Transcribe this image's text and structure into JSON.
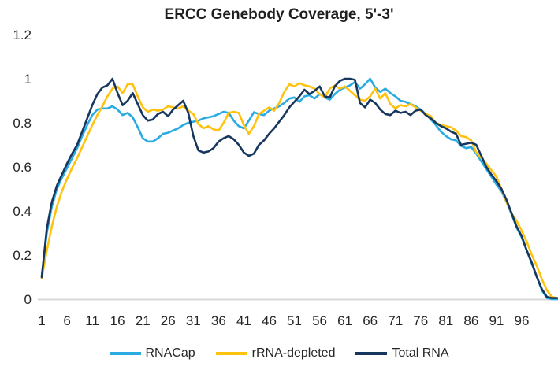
{
  "title": "ERCC Genebody Coverage, 5'-3'",
  "colors": {
    "background": "#ffffff",
    "text": "#262626",
    "axis_line": "#d9d9d9",
    "rnacap": "#29abe2",
    "rrna_depleted": "#ffc20e",
    "total_rna": "#17375e"
  },
  "legend": {
    "items": [
      "RNACap",
      "rRNA-depleted",
      "Total RNA"
    ]
  },
  "chart_data": {
    "type": "line",
    "title": "ERCC Genebody Coverage, 5'-3'",
    "xlabel": "",
    "ylabel": "",
    "grid": false,
    "legend_position": "bottom",
    "ylim": [
      0,
      1.2
    ],
    "yticks": [
      0,
      0.2,
      0.4,
      0.6,
      0.8,
      1,
      1.2
    ],
    "ytick_labels": [
      "0",
      "0.2",
      "0.4",
      "0.6",
      "0.8",
      "1",
      "1.2"
    ],
    "xticks": [
      1,
      6,
      11,
      16,
      21,
      26,
      31,
      36,
      41,
      46,
      51,
      56,
      61,
      66,
      71,
      76,
      81,
      86,
      91,
      96
    ],
    "x": [
      1,
      2,
      3,
      4,
      5,
      6,
      7,
      8,
      9,
      10,
      11,
      12,
      13,
      14,
      15,
      16,
      17,
      18,
      19,
      20,
      21,
      22,
      23,
      24,
      25,
      26,
      27,
      28,
      29,
      30,
      31,
      32,
      33,
      34,
      35,
      36,
      37,
      38,
      39,
      40,
      41,
      42,
      43,
      44,
      45,
      46,
      47,
      48,
      49,
      50,
      51,
      52,
      53,
      54,
      55,
      56,
      57,
      58,
      59,
      60,
      61,
      62,
      63,
      64,
      65,
      66,
      67,
      68,
      69,
      70,
      71,
      72,
      73,
      74,
      75,
      76,
      77,
      78,
      79,
      80,
      81,
      82,
      83,
      84,
      85,
      86,
      87,
      88,
      89,
      90,
      91,
      92,
      93,
      94,
      95,
      96,
      97,
      98,
      99,
      100,
      101,
      102,
      103
    ],
    "series": [
      {
        "name": "RNACap",
        "color": "#29abe2",
        "values": [
          0.105,
          0.3,
          0.42,
          0.5,
          0.55,
          0.595,
          0.64,
          0.685,
          0.74,
          0.79,
          0.835,
          0.86,
          0.865,
          0.865,
          0.875,
          0.86,
          0.835,
          0.845,
          0.825,
          0.78,
          0.73,
          0.715,
          0.715,
          0.73,
          0.75,
          0.755,
          0.765,
          0.775,
          0.79,
          0.8,
          0.805,
          0.81,
          0.82,
          0.825,
          0.83,
          0.84,
          0.85,
          0.845,
          0.81,
          0.785,
          0.775,
          0.81,
          0.848,
          0.84,
          0.835,
          0.855,
          0.865,
          0.875,
          0.89,
          0.91,
          0.915,
          0.895,
          0.92,
          0.925,
          0.91,
          0.93,
          0.915,
          0.905,
          0.93,
          0.95,
          0.96,
          0.97,
          0.985,
          0.955,
          0.975,
          1.0,
          0.96,
          0.94,
          0.955,
          0.935,
          0.92,
          0.9,
          0.895,
          0.885,
          0.875,
          0.86,
          0.84,
          0.815,
          0.79,
          0.76,
          0.74,
          0.725,
          0.72,
          0.695,
          0.685,
          0.69,
          0.66,
          0.625,
          0.59,
          0.555,
          0.52,
          0.49,
          0.44,
          0.385,
          0.325,
          0.28,
          0.22,
          0.16,
          0.1,
          0.04,
          0.005,
          0.0,
          0.0
        ]
      },
      {
        "name": "rRNA-depleted",
        "color": "#ffc20e",
        "values": [
          0.095,
          0.22,
          0.33,
          0.42,
          0.49,
          0.545,
          0.595,
          0.64,
          0.69,
          0.74,
          0.79,
          0.835,
          0.875,
          0.92,
          0.955,
          0.965,
          0.935,
          0.975,
          0.975,
          0.92,
          0.87,
          0.85,
          0.86,
          0.855,
          0.86,
          0.875,
          0.87,
          0.865,
          0.875,
          0.855,
          0.84,
          0.795,
          0.775,
          0.785,
          0.77,
          0.765,
          0.8,
          0.845,
          0.85,
          0.845,
          0.79,
          0.75,
          0.785,
          0.84,
          0.855,
          0.87,
          0.855,
          0.89,
          0.94,
          0.975,
          0.965,
          0.98,
          0.97,
          0.965,
          0.955,
          0.93,
          0.915,
          0.955,
          0.97,
          0.955,
          0.965,
          0.945,
          0.925,
          0.905,
          0.9,
          0.92,
          0.955,
          0.91,
          0.935,
          0.885,
          0.865,
          0.88,
          0.875,
          0.885,
          0.87,
          0.855,
          0.84,
          0.83,
          0.8,
          0.79,
          0.785,
          0.78,
          0.765,
          0.74,
          0.735,
          0.72,
          0.665,
          0.64,
          0.615,
          0.585,
          0.555,
          0.5,
          0.44,
          0.39,
          0.355,
          0.31,
          0.26,
          0.2,
          0.15,
          0.09,
          0.04,
          0.01,
          0.005
        ]
      },
      {
        "name": "Total RNA",
        "color": "#17375e",
        "values": [
          0.1,
          0.32,
          0.44,
          0.515,
          0.565,
          0.615,
          0.66,
          0.7,
          0.76,
          0.82,
          0.88,
          0.93,
          0.96,
          0.97,
          1.0,
          0.935,
          0.88,
          0.9,
          0.935,
          0.885,
          0.835,
          0.81,
          0.815,
          0.84,
          0.85,
          0.83,
          0.86,
          0.88,
          0.9,
          0.845,
          0.74,
          0.675,
          0.665,
          0.67,
          0.685,
          0.715,
          0.73,
          0.74,
          0.725,
          0.7,
          0.665,
          0.65,
          0.66,
          0.7,
          0.72,
          0.75,
          0.775,
          0.805,
          0.835,
          0.87,
          0.895,
          0.92,
          0.95,
          0.93,
          0.945,
          0.965,
          0.92,
          0.915,
          0.965,
          0.99,
          1.0,
          1.0,
          0.995,
          0.89,
          0.87,
          0.905,
          0.89,
          0.86,
          0.84,
          0.835,
          0.855,
          0.845,
          0.85,
          0.835,
          0.855,
          0.86,
          0.835,
          0.82,
          0.8,
          0.785,
          0.775,
          0.76,
          0.75,
          0.7,
          0.705,
          0.71,
          0.7,
          0.65,
          0.6,
          0.565,
          0.535,
          0.5,
          0.45,
          0.39,
          0.33,
          0.285,
          0.22,
          0.165,
          0.1,
          0.045,
          0.01,
          0.005,
          0.005
        ]
      }
    ]
  }
}
